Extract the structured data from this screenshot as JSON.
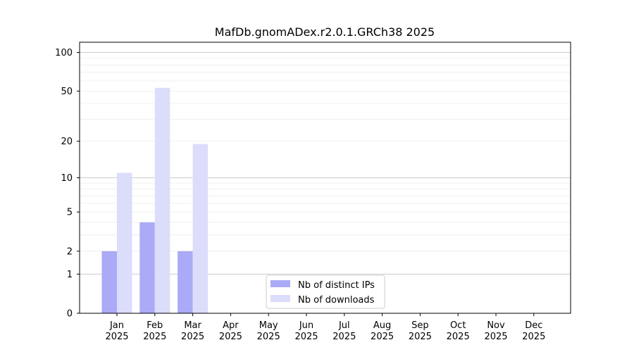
{
  "chart_data": {
    "type": "bar",
    "title": "MafDb.gnomADex.r2.0.1.GRCh38 2025",
    "xlabel": "",
    "ylabel": "",
    "y_scale": "symlog",
    "ylim": [
      0,
      120
    ],
    "yticks": [
      0,
      1,
      2,
      5,
      10,
      20,
      50,
      100
    ],
    "categories": [
      {
        "month": "Jan",
        "year": "2025"
      },
      {
        "month": "Feb",
        "year": "2025"
      },
      {
        "month": "Mar",
        "year": "2025"
      },
      {
        "month": "Apr",
        "year": "2025"
      },
      {
        "month": "May",
        "year": "2025"
      },
      {
        "month": "Jun",
        "year": "2025"
      },
      {
        "month": "Jul",
        "year": "2025"
      },
      {
        "month": "Aug",
        "year": "2025"
      },
      {
        "month": "Sep",
        "year": "2025"
      },
      {
        "month": "Oct",
        "year": "2025"
      },
      {
        "month": "Nov",
        "year": "2025"
      },
      {
        "month": "Dec",
        "year": "2025"
      }
    ],
    "series": [
      {
        "name": "Nb of distinct IPs",
        "color": "#aaaaf6",
        "values": [
          2,
          4,
          2,
          0,
          0,
          0,
          0,
          0,
          0,
          0,
          0,
          0
        ]
      },
      {
        "name": "Nb of downloads",
        "color": "#dcdcfb",
        "values": [
          11,
          53,
          19,
          0,
          0,
          0,
          0,
          0,
          0,
          0,
          0,
          0
        ]
      }
    ],
    "grid": true,
    "legend": "bottom-center"
  }
}
